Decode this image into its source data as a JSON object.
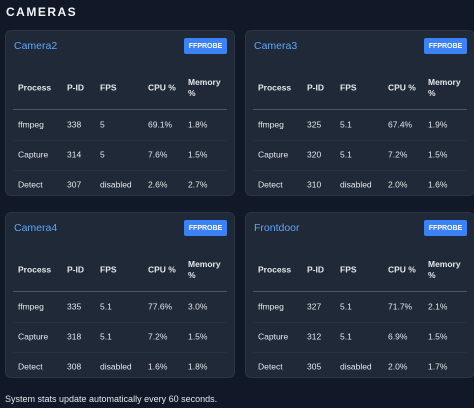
{
  "header": {
    "title": "CAMERAS"
  },
  "cameras": [
    {
      "name": "Camera2",
      "button": "FFPROBE",
      "columns": [
        "Process",
        "P-ID",
        "FPS",
        "CPU %",
        "Memory %"
      ],
      "rows": [
        [
          "ffmpeg",
          "338",
          "5",
          "69.1%",
          "1.8%"
        ],
        [
          "Capture",
          "314",
          "5",
          "7.6%",
          "1.5%"
        ],
        [
          "Detect",
          "307",
          "disabled",
          "2.6%",
          "2.7%"
        ]
      ]
    },
    {
      "name": "Camera3",
      "button": "FFPROBE",
      "columns": [
        "Process",
        "P-ID",
        "FPS",
        "CPU %",
        "Memory %"
      ],
      "rows": [
        [
          "ffmpeg",
          "325",
          "5.1",
          "67.4%",
          "1.9%"
        ],
        [
          "Capture",
          "320",
          "5.1",
          "7.2%",
          "1.5%"
        ],
        [
          "Detect",
          "310",
          "disabled",
          "2.0%",
          "1.6%"
        ]
      ]
    },
    {
      "name": "Camera4",
      "button": "FFPROBE",
      "columns": [
        "Process",
        "P-ID",
        "FPS",
        "CPU %",
        "Memory %"
      ],
      "rows": [
        [
          "ffmpeg",
          "335",
          "5.1",
          "77.6%",
          "3.0%"
        ],
        [
          "Capture",
          "318",
          "5.1",
          "7.2%",
          "1.5%"
        ],
        [
          "Detect",
          "308",
          "disabled",
          "1.6%",
          "1.8%"
        ]
      ]
    },
    {
      "name": "Frontdoor",
      "button": "FFPROBE",
      "columns": [
        "Process",
        "P-ID",
        "FPS",
        "CPU %",
        "Memory %"
      ],
      "rows": [
        [
          "ffmpeg",
          "327",
          "5.1",
          "71.7%",
          "2.1%"
        ],
        [
          "Capture",
          "312",
          "5.1",
          "6.9%",
          "1.5%"
        ],
        [
          "Detect",
          "305",
          "disabled",
          "2.0%",
          "1.7%"
        ]
      ]
    }
  ],
  "footer": "System stats update automatically every 60 seconds."
}
